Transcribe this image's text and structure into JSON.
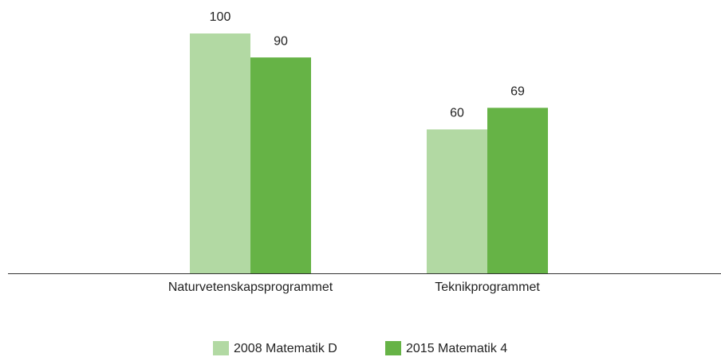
{
  "chart_data": {
    "type": "bar",
    "categories": [
      "Naturvetenskapsprogrammet",
      "Teknikprogrammet"
    ],
    "series": [
      {
        "name": "2008 Matematik D",
        "color": "#b2d9a3",
        "values": [
          100,
          60
        ]
      },
      {
        "name": "2015 Matematik 4",
        "color": "#66b346",
        "values": [
          90,
          69
        ]
      }
    ]
  }
}
